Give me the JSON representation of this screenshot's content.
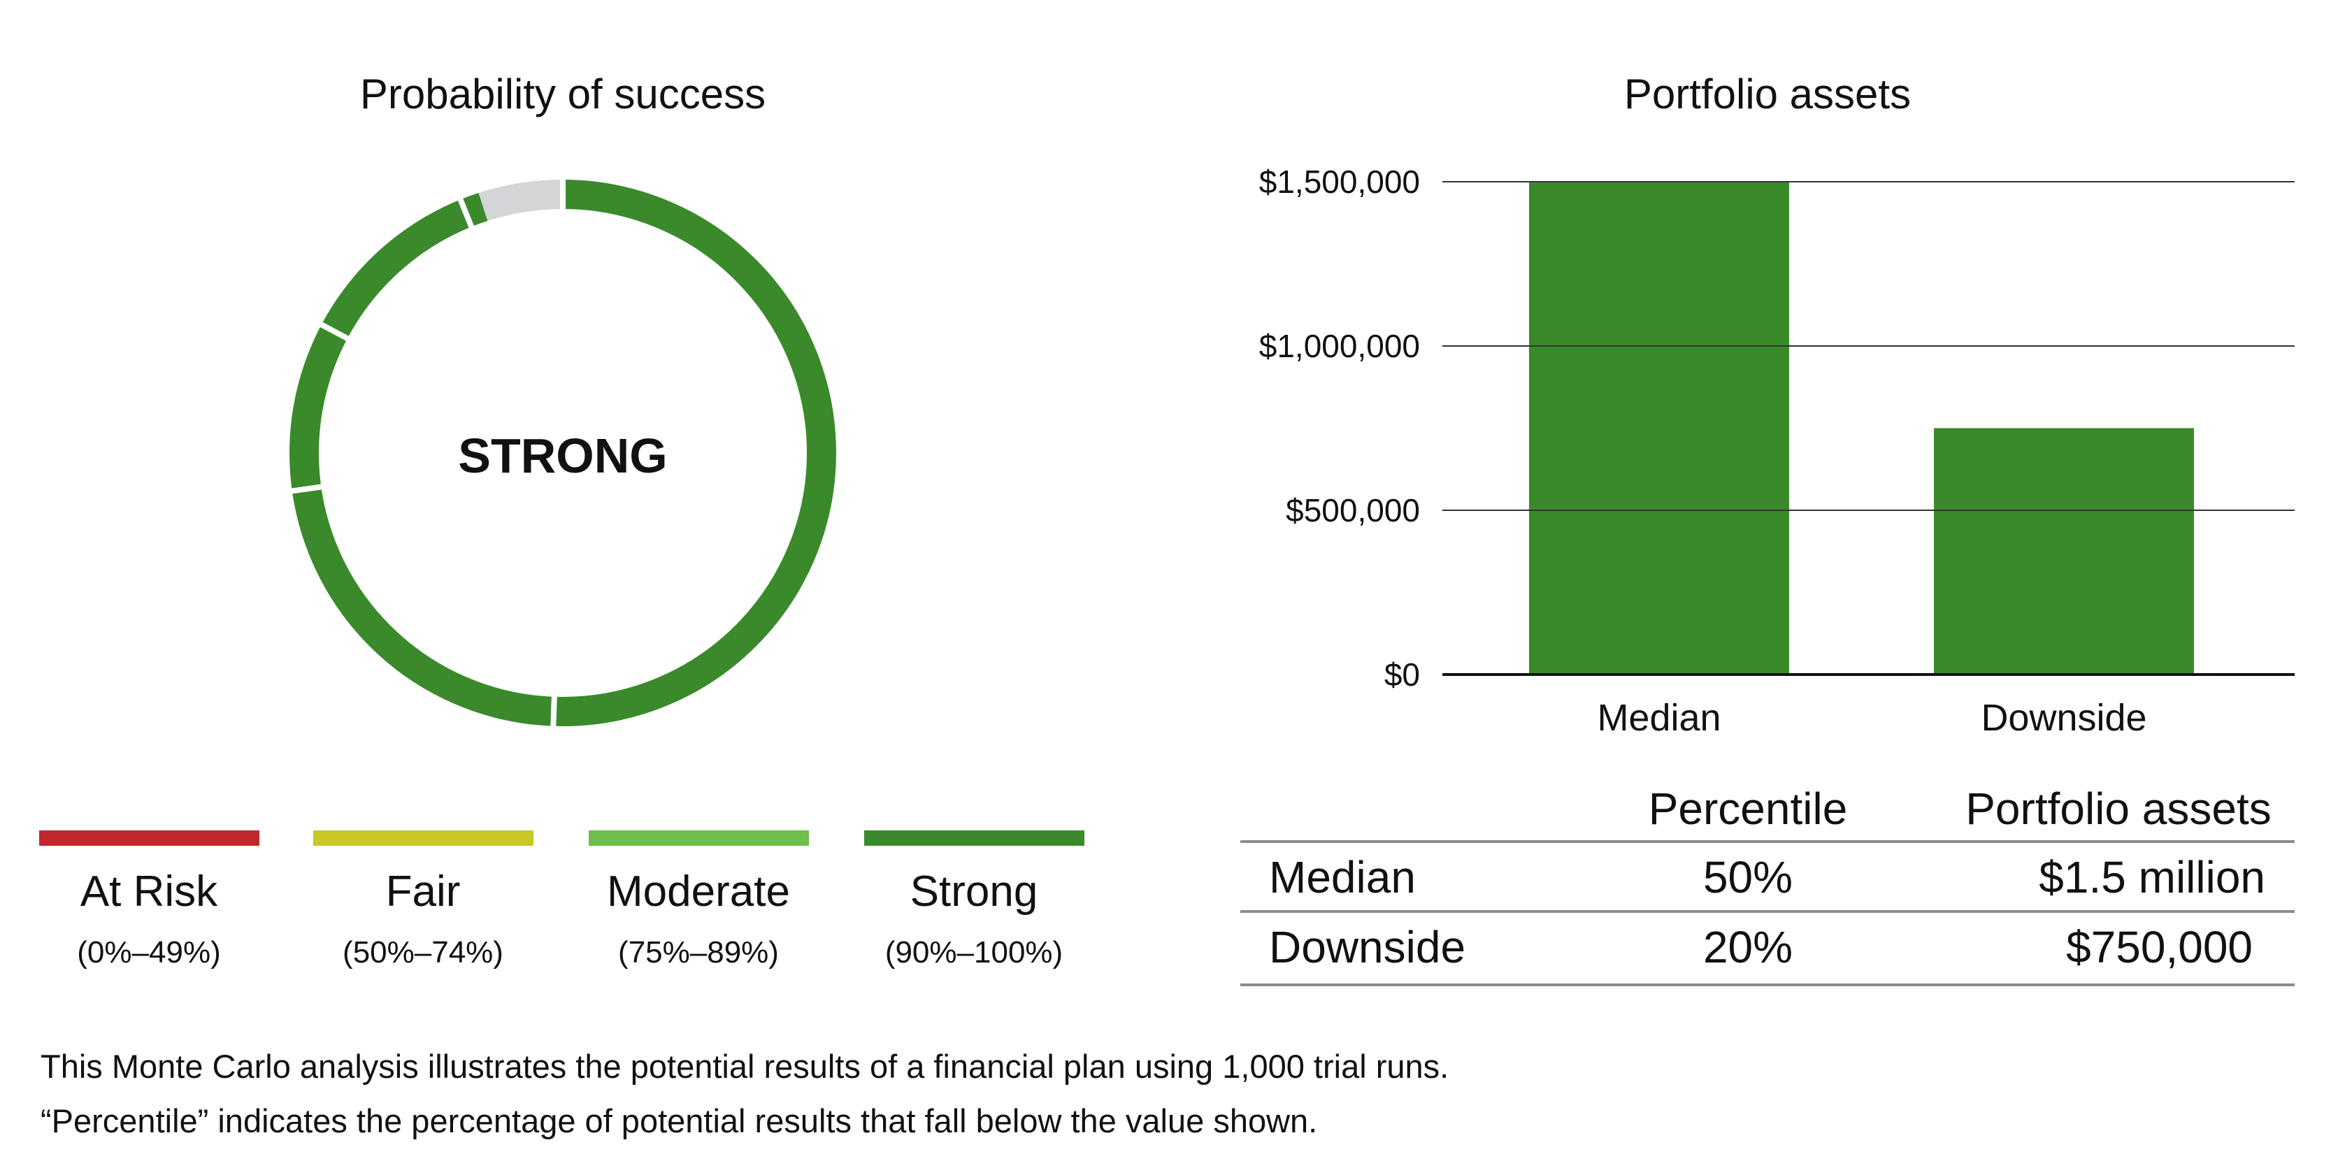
{
  "donut": {
    "title": "Probability of success",
    "center_label": "STRONG",
    "colors": {
      "strong": "#3a8a2b",
      "remaining": "#d4d5d7"
    }
  },
  "legend": [
    {
      "name": "At Risk",
      "range": "(0%–49%)",
      "color": "#c1272d"
    },
    {
      "name": "Fair",
      "range": "(50%–74%)",
      "color": "#c8c925"
    },
    {
      "name": "Moderate",
      "range": "(75%–89%)",
      "color": "#6cbf4a"
    },
    {
      "name": "Strong",
      "range": "(90%–100%)",
      "color": "#3a8a2b"
    }
  ],
  "table": {
    "headers": [
      "",
      "Percentile",
      "Portfolio assets"
    ],
    "rows": [
      [
        "Median",
        "50%",
        "$1.5 million"
      ],
      [
        "Downside",
        "20%",
        "$750,000"
      ]
    ]
  },
  "footnotes": [
    "This Monte Carlo analysis illustrates the potential results of a financial plan using 1,000 trial runs.",
    "“Percentile” indicates the percentage of potential results that fall below the value shown."
  ],
  "chart_data": [
    {
      "type": "pie",
      "title": "Probability of success",
      "values": [
        95,
        5
      ],
      "colors": [
        "#3a8a2b",
        "#d4d5d7"
      ]
    },
    {
      "type": "bar",
      "title": "Portfolio assets",
      "categories": [
        "Median",
        "Downside"
      ],
      "values": [
        1500000,
        750000
      ],
      "ylim": [
        0,
        1500000
      ],
      "yticks": [
        0,
        500000,
        1000000,
        1500000
      ],
      "ytick_labels": [
        "$0",
        "$500,000",
        "$1,000,000",
        "$1,500,000"
      ],
      "bar_color": "#3a8a2b",
      "grid": true
    }
  ]
}
